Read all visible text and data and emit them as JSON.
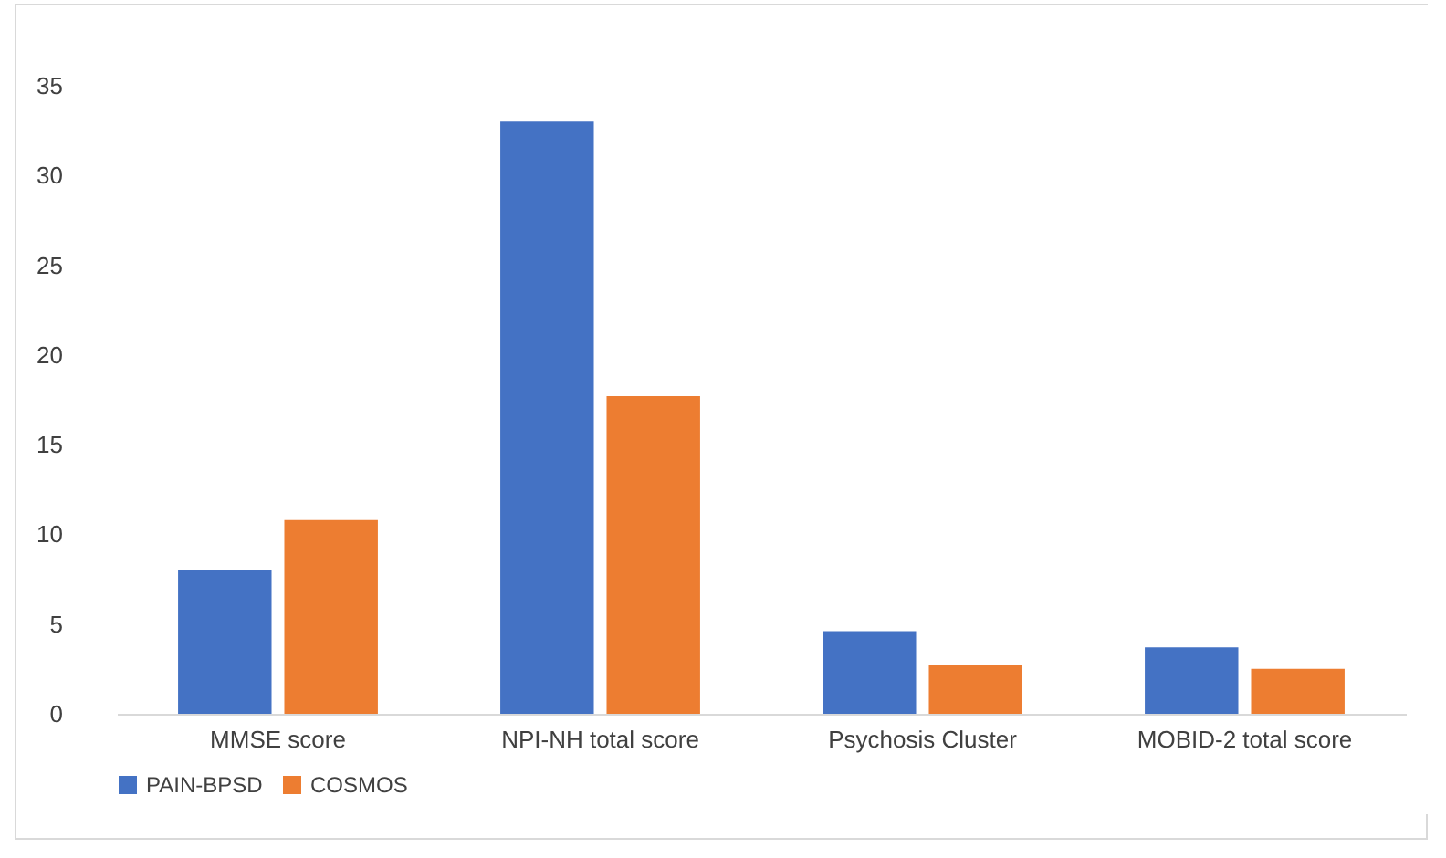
{
  "chart_data": {
    "type": "bar",
    "categories": [
      "MMSE score",
      "NPI-NH total score",
      "Psychosis Cluster",
      "MOBID-2 total score"
    ],
    "series": [
      {
        "name": "PAIN-BPSD",
        "color": "#4472c4",
        "values": [
          8.0,
          33.0,
          4.6,
          3.7
        ]
      },
      {
        "name": "COSMOS",
        "color": "#ed7d31",
        "values": [
          10.8,
          17.7,
          2.7,
          2.5
        ]
      }
    ],
    "ylim": [
      0,
      35
    ],
    "yticks": [
      0,
      5,
      10,
      15,
      20,
      25,
      30,
      35
    ],
    "grid": false,
    "legend": "bottom"
  }
}
